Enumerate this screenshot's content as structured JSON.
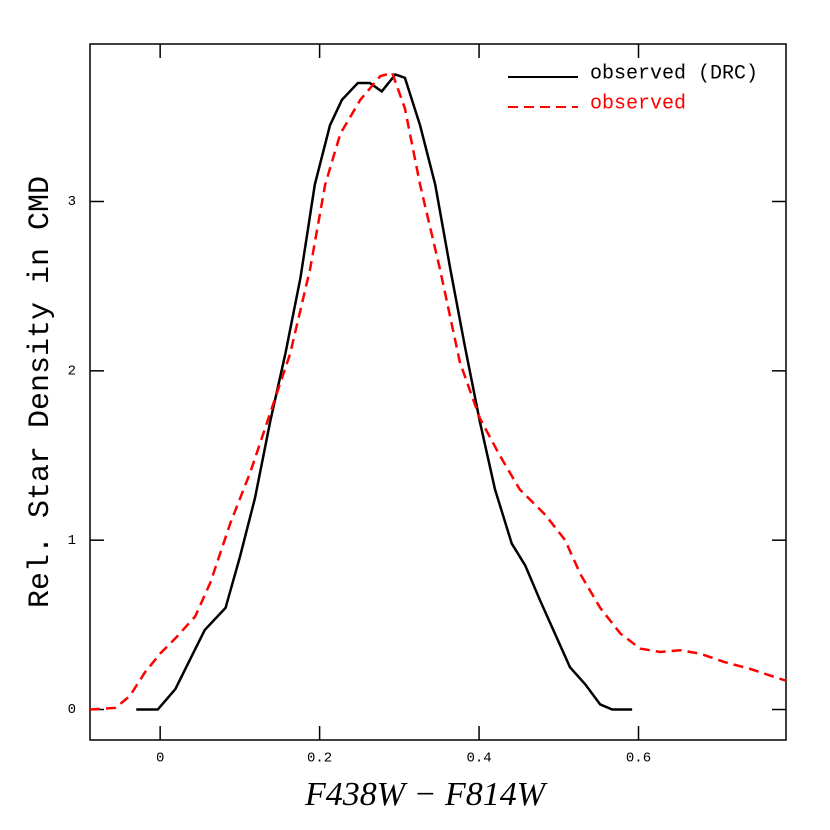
{
  "chart_data": {
    "type": "line",
    "x_label": "F438W − F814W",
    "y_label": "Rel. Star Density in CMD",
    "xlim": [
      -0.088,
      0.785
    ],
    "ylim": [
      -0.18,
      3.93
    ],
    "xticks": [
      0,
      0.2,
      0.4,
      0.6
    ],
    "yticks": [
      0,
      1,
      2,
      3
    ],
    "legend": "upper right",
    "series": [
      {
        "name": "observed (DRC)",
        "color": "#000000",
        "dash": "solid",
        "x": [
          -0.03,
          -0.003,
          0.019,
          0.038,
          0.056,
          0.082,
          0.1,
          0.119,
          0.138,
          0.157,
          0.176,
          0.194,
          0.213,
          0.228,
          0.248,
          0.263,
          0.278,
          0.295,
          0.307,
          0.326,
          0.345,
          0.364,
          0.382,
          0.401,
          0.42,
          0.441,
          0.458,
          0.476,
          0.495,
          0.514,
          0.533,
          0.552,
          0.567,
          0.592
        ],
        "values": [
          0,
          0,
          0.12,
          0.3,
          0.47,
          0.6,
          0.9,
          1.25,
          1.7,
          2.1,
          2.55,
          3.1,
          3.45,
          3.6,
          3.7,
          3.7,
          3.65,
          3.75,
          3.73,
          3.45,
          3.1,
          2.6,
          2.15,
          1.7,
          1.3,
          0.98,
          0.85,
          0.65,
          0.45,
          0.25,
          0.15,
          0.03,
          0,
          0
        ]
      },
      {
        "name": "observed",
        "color": "#ff0000",
        "dash": "dashed",
        "x": [
          -0.088,
          -0.056,
          -0.038,
          -0.019,
          0,
          0.019,
          0.044,
          0.063,
          0.088,
          0.113,
          0.138,
          0.163,
          0.188,
          0.207,
          0.226,
          0.251,
          0.276,
          0.291,
          0.307,
          0.326,
          0.351,
          0.376,
          0.401,
          0.426,
          0.451,
          0.483,
          0.508,
          0.527,
          0.552,
          0.577,
          0.602,
          0.627,
          0.652,
          0.677,
          0.708,
          0.74,
          0.785
        ],
        "values": [
          0,
          0.01,
          0.08,
          0.22,
          0.33,
          0.42,
          0.55,
          0.75,
          1.1,
          1.4,
          1.75,
          2.1,
          2.6,
          3.1,
          3.4,
          3.6,
          3.74,
          3.76,
          3.55,
          3.1,
          2.6,
          2.05,
          1.72,
          1.5,
          1.3,
          1.15,
          1.0,
          0.8,
          0.6,
          0.45,
          0.36,
          0.34,
          0.35,
          0.33,
          0.28,
          0.24,
          0.17
        ]
      }
    ]
  }
}
